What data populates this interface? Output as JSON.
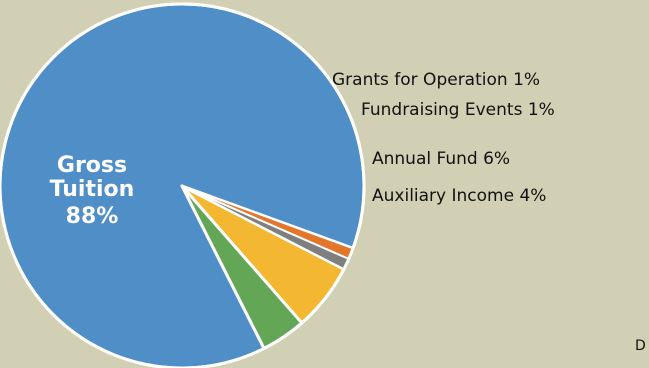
{
  "chart_data": {
    "type": "pie",
    "slices": [
      {
        "label": "Gross Tuition",
        "value": 88,
        "display": "88%",
        "color": "#4f8ec6"
      },
      {
        "label": "Auxiliary Income",
        "value": 4,
        "display": "4%",
        "color": "#62a656"
      },
      {
        "label": "Annual Fund",
        "value": 6,
        "display": "6%",
        "color": "#f4b731"
      },
      {
        "label": "Fundraising Events",
        "value": 1,
        "display": "1%",
        "color": "#7f7f7f"
      },
      {
        "label": "Grants for Operation",
        "value": 1,
        "display": "1%",
        "color": "#e3762b"
      }
    ],
    "inner_label": {
      "line1": "Gross",
      "line2": "Tuition",
      "line3": "88%"
    },
    "outer_labels": [
      "Grants for Operation 1%",
      "Fundraising Events 1%",
      "Annual Fund 6%",
      "Auxiliary Income 4%"
    ],
    "footer_text": "D"
  }
}
